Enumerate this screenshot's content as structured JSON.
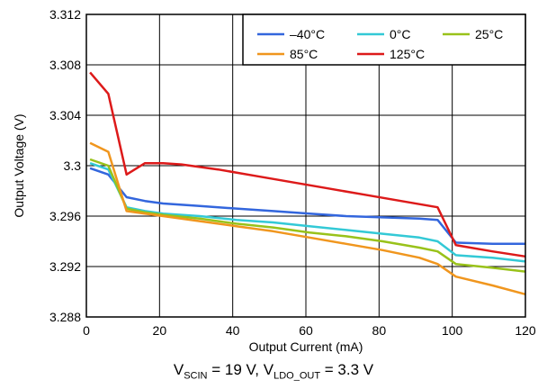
{
  "chart_data": {
    "type": "line",
    "xlabel": "Output Current (mA)",
    "ylabel": "Output Voltage (V)",
    "xlim": [
      0,
      120
    ],
    "ylim": [
      3.288,
      3.312
    ],
    "x_ticks": [
      0,
      20,
      40,
      60,
      80,
      100,
      120
    ],
    "y_ticks": [
      3.288,
      3.292,
      3.296,
      3.3,
      3.304,
      3.308,
      3.312
    ],
    "y_tick_labels": [
      "3.288",
      "3.292",
      "3.296",
      "3.3",
      "3.304",
      "3.308",
      "3.312"
    ],
    "grid": true,
    "legend_position": "top-right",
    "series": [
      {
        "name": "–40°C",
        "color": "#3366dd",
        "x": [
          1,
          6,
          11,
          16,
          21,
          31,
          41,
          51,
          61,
          71,
          81,
          91,
          96,
          101,
          111,
          120
        ],
        "y": [
          3.2998,
          3.2993,
          3.2975,
          3.2972,
          3.297,
          3.2968,
          3.2966,
          3.2964,
          3.2962,
          3.296,
          3.2959,
          3.2958,
          3.2957,
          3.2939,
          3.2938,
          3.2938
        ]
      },
      {
        "name": "0°C",
        "color": "#33c9d6",
        "x": [
          1,
          6,
          11,
          16,
          21,
          31,
          41,
          51,
          61,
          71,
          81,
          91,
          96,
          101,
          111,
          120
        ],
        "y": [
          3.3002,
          3.2997,
          3.2967,
          3.2964,
          3.2962,
          3.296,
          3.2957,
          3.2955,
          3.2952,
          3.2949,
          3.2946,
          3.2943,
          3.294,
          3.2929,
          3.2927,
          3.2924
        ]
      },
      {
        "name": "25°C",
        "color": "#99c21a",
        "x": [
          1,
          6,
          11,
          16,
          21,
          31,
          41,
          51,
          61,
          71,
          81,
          91,
          96,
          101,
          111,
          120
        ],
        "y": [
          3.3005,
          3.3,
          3.2966,
          3.2963,
          3.2961,
          3.2958,
          3.2954,
          3.2951,
          3.2947,
          3.2944,
          3.294,
          3.2935,
          3.2932,
          3.2922,
          3.2919,
          3.2916
        ]
      },
      {
        "name": "85°C",
        "color": "#f0961e",
        "x": [
          1,
          6,
          11,
          16,
          21,
          31,
          41,
          51,
          61,
          71,
          81,
          91,
          96,
          101,
          111,
          120
        ],
        "y": [
          3.3018,
          3.3011,
          3.2964,
          3.2962,
          3.296,
          3.2956,
          3.2952,
          3.2948,
          3.2943,
          3.2938,
          3.2933,
          3.2927,
          3.2922,
          3.2912,
          3.2905,
          3.2898
        ]
      },
      {
        "name": "125°C",
        "color": "#dd1a1a",
        "x": [
          1,
          6,
          11,
          16,
          21,
          26,
          36,
          46,
          56,
          66,
          76,
          86,
          96,
          101,
          111,
          120
        ],
        "y": [
          3.3074,
          3.3057,
          3.2993,
          3.3002,
          3.3002,
          3.3001,
          3.2997,
          3.2992,
          3.2987,
          3.2982,
          3.2977,
          3.2972,
          3.2967,
          3.2937,
          3.2932,
          3.2928
        ]
      }
    ]
  },
  "caption": {
    "v1": "V",
    "v1_sub": "SCIN",
    "v1_val": " = 19 V, ",
    "v2": "V",
    "v2_sub": "LDO_OUT",
    "v2_val": " = 3.3 V"
  }
}
